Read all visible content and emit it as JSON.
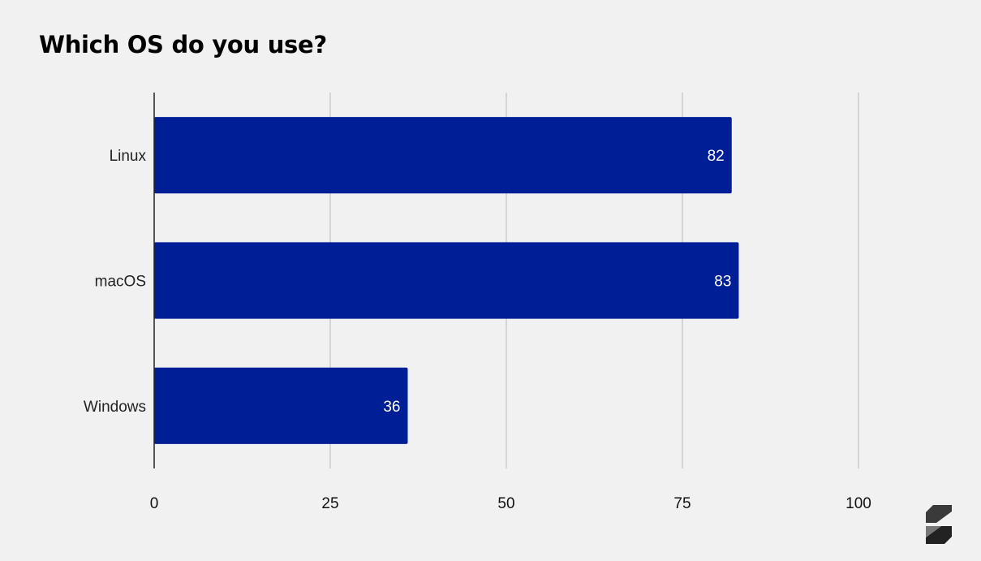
{
  "title": "Which OS do you use?",
  "colors": {
    "bar": "#001f96",
    "grid": "#c6c6c6",
    "axis": "#222222",
    "background": "#f1f1f1"
  },
  "logo_icon": "stacked-s-logo-icon",
  "chart_data": {
    "type": "bar",
    "orientation": "horizontal",
    "title": "Which OS do you use?",
    "categories": [
      "Linux",
      "macOS",
      "Windows"
    ],
    "values": [
      82,
      83,
      36
    ],
    "data_labels": [
      "82",
      "83",
      "36"
    ],
    "xlim": [
      0,
      100
    ],
    "xticks": [
      0,
      25,
      50,
      75,
      100
    ],
    "xtick_labels": [
      "0",
      "25",
      "50",
      "75",
      "100"
    ],
    "xlabel": "",
    "ylabel": "",
    "grid": "vertical",
    "legend": "none"
  }
}
